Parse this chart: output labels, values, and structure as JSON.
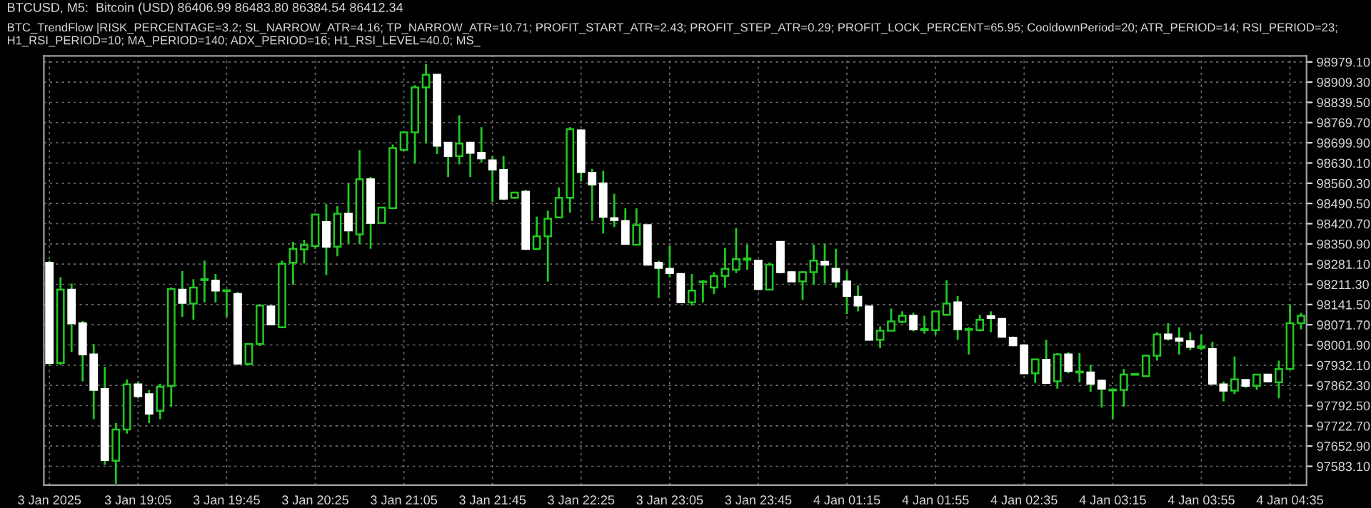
{
  "chart_data": {
    "type": "candlestick",
    "title": "BTCUSD, M5:  Bitcoin (USD) 86406.99 86483.80 86384.54 86412.34",
    "annotations": [
      "BTC_TrendFlow |RISK_PERCENTAGE=3.2; SL_NARROW_ATR=4.16; TP_NARROW_ATR=10.71; PROFIT_START_ATR=2.43; PROFIT_STEP_ATR=0.29; PROFIT_LOCK_PERCENT=65.95; CooldownPeriod=20; ATR_PERIOD=14; RSI_PERIOD=23; H1_RSI_PERIOD=10; MA_PERIOD=140; ADX_PERIOD=16; H1_RSI_LEVEL=40.0; MS_"
    ],
    "categories": [
      "3 Jan 2025",
      null,
      null,
      null,
      null,
      null,
      null,
      null,
      "3 Jan 19:05",
      null,
      null,
      null,
      null,
      null,
      null,
      null,
      "3 Jan 19:45",
      null,
      null,
      null,
      null,
      null,
      null,
      null,
      "3 Jan 20:25",
      null,
      null,
      null,
      null,
      null,
      null,
      null,
      "3 Jan 21:05",
      null,
      null,
      null,
      null,
      null,
      null,
      null,
      "3 Jan 21:45",
      null,
      null,
      null,
      null,
      null,
      null,
      null,
      "3 Jan 22:25",
      null,
      null,
      null,
      null,
      null,
      null,
      null,
      "3 Jan 23:05",
      null,
      null,
      null,
      null,
      null,
      null,
      null,
      "3 Jan 23:45",
      null,
      null,
      null,
      null,
      null,
      null,
      null,
      "4 Jan 01:15",
      null,
      null,
      null,
      null,
      null,
      null,
      null,
      "4 Jan 01:55",
      null,
      null,
      null,
      null,
      null,
      null,
      null,
      "4 Jan 02:35",
      null,
      null,
      null,
      null,
      null,
      null,
      null,
      "4 Jan 03:15",
      null,
      null,
      null,
      null,
      null,
      null,
      null,
      "4 Jan 03:55",
      null,
      null,
      null,
      null,
      null,
      null,
      null,
      "4 Jan 04:35",
      null
    ],
    "ohlc": [
      [
        98286,
        98293,
        97933,
        97940
      ],
      [
        97940,
        98236,
        97933,
        98193
      ],
      [
        98193,
        98214,
        97977,
        98077
      ],
      [
        98077,
        98085,
        97876,
        97969
      ],
      [
        97969,
        98005,
        97746,
        97847
      ],
      [
        97850,
        97926,
        97588,
        97605
      ],
      [
        97602,
        97732,
        97523,
        97710
      ],
      [
        97710,
        97883,
        97696,
        97866
      ],
      [
        97866,
        97876,
        97818,
        97825
      ],
      [
        97832,
        97847,
        97732,
        97765
      ],
      [
        97775,
        97868,
        97746,
        97857
      ],
      [
        97861,
        98200,
        97789,
        98195
      ],
      [
        98193,
        98257,
        98099,
        98147
      ],
      [
        98145,
        98229,
        98089,
        98200
      ],
      [
        98226,
        98293,
        98149,
        98229
      ],
      [
        98224,
        98247,
        98149,
        98190
      ],
      [
        98188,
        98193,
        98099,
        98191
      ],
      [
        98178,
        98185,
        97933,
        97938
      ],
      [
        97936,
        98005,
        97933,
        98005
      ],
      [
        98005,
        98142,
        97998,
        98138
      ],
      [
        98135,
        98138,
        98070,
        98073
      ],
      [
        98063,
        98293,
        98063,
        98282
      ],
      [
        98286,
        98358,
        98210,
        98334
      ],
      [
        98332,
        98365,
        98283,
        98347
      ],
      [
        98344,
        98455,
        98334,
        98452
      ],
      [
        98426,
        98488,
        98243,
        98341
      ],
      [
        98341,
        98481,
        98308,
        98455
      ],
      [
        98455,
        98560,
        98351,
        98397
      ],
      [
        98384,
        98675,
        98351,
        98574
      ],
      [
        98574,
        98582,
        98334,
        98423
      ],
      [
        98423,
        98478,
        98423,
        98476
      ],
      [
        98474,
        98694,
        98474,
        98682
      ],
      [
        98675,
        98740,
        98675,
        98736
      ],
      [
        98736,
        98899,
        98628,
        98891
      ],
      [
        98891,
        98971,
        98697,
        98935
      ],
      [
        98935,
        98935,
        98661,
        98690
      ],
      [
        98700,
        98700,
        98582,
        98654
      ],
      [
        98654,
        98795,
        98625,
        98697
      ],
      [
        98700,
        98700,
        98582,
        98665
      ],
      [
        98665,
        98754,
        98632,
        98646
      ],
      [
        98639,
        98654,
        98495,
        98608
      ],
      [
        98606,
        98654,
        98502,
        98507
      ],
      [
        98510,
        98531,
        98507,
        98528
      ],
      [
        98531,
        98538,
        98329,
        98334
      ],
      [
        98334,
        98445,
        98329,
        98377
      ],
      [
        98377,
        98466,
        98221,
        98438
      ],
      [
        98442,
        98546,
        98440,
        98510
      ],
      [
        98510,
        98754,
        98459,
        98747
      ],
      [
        98743,
        98747,
        98567,
        98599
      ],
      [
        98596,
        98610,
        98430,
        98556
      ],
      [
        98560,
        98603,
        98387,
        98445
      ],
      [
        98440,
        98524,
        98409,
        98433
      ],
      [
        98430,
        98474,
        98348,
        98351
      ],
      [
        98348,
        98474,
        98348,
        98416
      ],
      [
        98416,
        98416,
        98279,
        98279
      ],
      [
        98286,
        98293,
        98164,
        98268
      ],
      [
        98265,
        98344,
        98236,
        98250
      ],
      [
        98247,
        98250,
        98147,
        98149
      ],
      [
        98149,
        98247,
        98138,
        98190
      ],
      [
        98219,
        98226,
        98149,
        98221
      ],
      [
        98200,
        98253,
        98178,
        98240
      ],
      [
        98240,
        98337,
        98200,
        98265
      ],
      [
        98262,
        98406,
        98250,
        98298
      ],
      [
        98296,
        98348,
        98262,
        98301
      ],
      [
        98293,
        98296,
        98190,
        98195
      ],
      [
        98193,
        98286,
        98193,
        98279
      ],
      [
        98358,
        98358,
        98250,
        98253
      ],
      [
        98253,
        98257,
        98221,
        98221
      ],
      [
        98221,
        98257,
        98157,
        98253
      ],
      [
        98253,
        98348,
        98210,
        98293
      ],
      [
        98289,
        98351,
        98214,
        98279
      ],
      [
        98265,
        98334,
        98200,
        98221
      ],
      [
        98221,
        98257,
        98109,
        98171
      ],
      [
        98168,
        98207,
        98118,
        98138
      ],
      [
        98135,
        98138,
        98020,
        98020
      ],
      [
        98020,
        98066,
        97991,
        98051
      ],
      [
        98051,
        98128,
        98049,
        98083
      ],
      [
        98082,
        98118,
        98077,
        98103
      ],
      [
        98103,
        98113,
        98049,
        98056
      ],
      [
        98053,
        98103,
        98041,
        98057
      ],
      [
        98053,
        98121,
        98037,
        98118
      ],
      [
        98106,
        98226,
        98103,
        98145
      ],
      [
        98149,
        98171,
        98020,
        98056
      ],
      [
        98054,
        98063,
        97969,
        98057
      ],
      [
        98053,
        98106,
        98049,
        98089
      ],
      [
        98102,
        98118,
        98046,
        98095
      ],
      [
        98092,
        98095,
        98027,
        98030
      ],
      [
        98027,
        98031,
        97998,
        98001
      ],
      [
        98001,
        98005,
        97902,
        97904
      ],
      [
        97904,
        97955,
        97871,
        97952
      ],
      [
        97951,
        98020,
        97868,
        97871
      ],
      [
        97876,
        97974,
        97851,
        97969
      ],
      [
        97969,
        97977,
        97904,
        97912
      ],
      [
        97907,
        97974,
        97873,
        97910
      ],
      [
        97907,
        97933,
        97840,
        97868
      ],
      [
        97879,
        97883,
        97786,
        97851
      ],
      [
        97845,
        97851,
        97746,
        97848
      ],
      [
        97847,
        97919,
        97789,
        97900
      ],
      [
        97899,
        97902,
        97897,
        97902
      ],
      [
        97894,
        97969,
        97894,
        97965
      ],
      [
        97965,
        98046,
        97948,
        98038
      ],
      [
        98038,
        98077,
        98017,
        98024
      ],
      [
        98024,
        98063,
        97969,
        98017
      ],
      [
        98015,
        98046,
        97984,
        97995
      ],
      [
        97992,
        98037,
        97984,
        97997
      ],
      [
        97988,
        98013,
        97866,
        97868
      ],
      [
        97866,
        97876,
        97807,
        97844
      ],
      [
        97844,
        97962,
        97832,
        97883
      ],
      [
        97881,
        97883,
        97854,
        97861
      ],
      [
        97861,
        97902,
        97847,
        97900
      ],
      [
        97900,
        97902,
        97873,
        97876
      ],
      [
        97873,
        97948,
        97818,
        97919
      ],
      [
        97919,
        98142,
        97919,
        98077
      ],
      [
        98077,
        98113,
        98056,
        98103
      ]
    ],
    "ylim": [
      97518,
      99000
    ],
    "yticks": [
      {
        "value": 98979.1,
        "label": "98979.10"
      },
      {
        "value": 98909.3,
        "label": "98909.30"
      },
      {
        "value": 98839.5,
        "label": "98839.50"
      },
      {
        "value": 98769.7,
        "label": "98769.70"
      },
      {
        "value": 98699.9,
        "label": "98699.90"
      },
      {
        "value": 98630.1,
        "label": "98630.10"
      },
      {
        "value": 98560.3,
        "label": "98560.30"
      },
      {
        "value": 98490.5,
        "label": "98490.50"
      },
      {
        "value": 98420.7,
        "label": "98420.70"
      },
      {
        "value": 98350.9,
        "label": "98350.90"
      },
      {
        "value": 98281.1,
        "label": "98281.10"
      },
      {
        "value": 98211.3,
        "label": "98211.30"
      },
      {
        "value": 98141.5,
        "label": "98141.50"
      },
      {
        "value": 98071.7,
        "label": "98071.70"
      },
      {
        "value": 98001.9,
        "label": "98001.90"
      },
      {
        "value": 97932.1,
        "label": "97932.10"
      },
      {
        "value": 97862.3,
        "label": "97862.30"
      },
      {
        "value": 97792.5,
        "label": "97792.50"
      },
      {
        "value": 97722.7,
        "label": "97722.70"
      },
      {
        "value": 97652.9,
        "label": "97652.90"
      },
      {
        "value": 97583.1,
        "label": "97583.10"
      }
    ],
    "grid": true
  }
}
